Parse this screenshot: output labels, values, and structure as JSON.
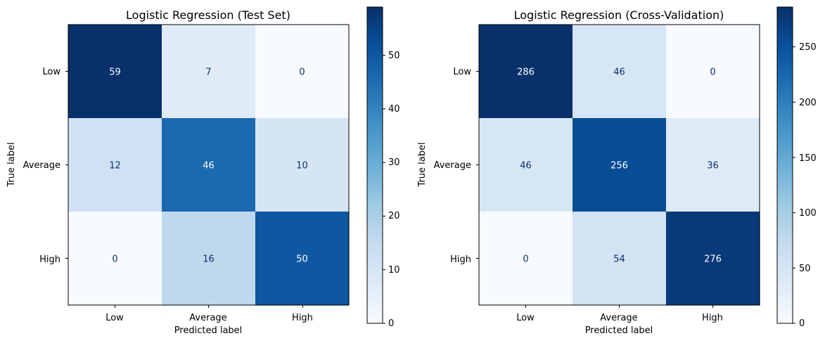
{
  "chart_data": [
    {
      "type": "heatmap",
      "title": "Logistic Regression (Test Set)",
      "xlabel": "Predicted label",
      "ylabel": "True label",
      "x_categories": [
        "Low",
        "Average",
        "High"
      ],
      "y_categories": [
        "Low",
        "Average",
        "High"
      ],
      "values": [
        [
          59,
          7,
          0
        ],
        [
          12,
          46,
          10
        ],
        [
          0,
          16,
          50
        ]
      ],
      "colormap": "Blues",
      "vmin": 0,
      "vmax": 59,
      "colorbar_ticks": [
        "0",
        "10",
        "20",
        "30",
        "40",
        "50"
      ]
    },
    {
      "type": "heatmap",
      "title": "Logistic Regression (Cross-Validation)",
      "xlabel": "Predicted label",
      "ylabel": "True label",
      "x_categories": [
        "Low",
        "Average",
        "High"
      ],
      "y_categories": [
        "Low",
        "Average",
        "High"
      ],
      "values": [
        [
          286,
          46,
          0
        ],
        [
          46,
          256,
          36
        ],
        [
          0,
          54,
          276
        ]
      ],
      "colormap": "Blues",
      "vmin": 0,
      "vmax": 286,
      "colorbar_ticks": [
        "0",
        "50",
        "100",
        "150",
        "200",
        "250"
      ]
    }
  ]
}
